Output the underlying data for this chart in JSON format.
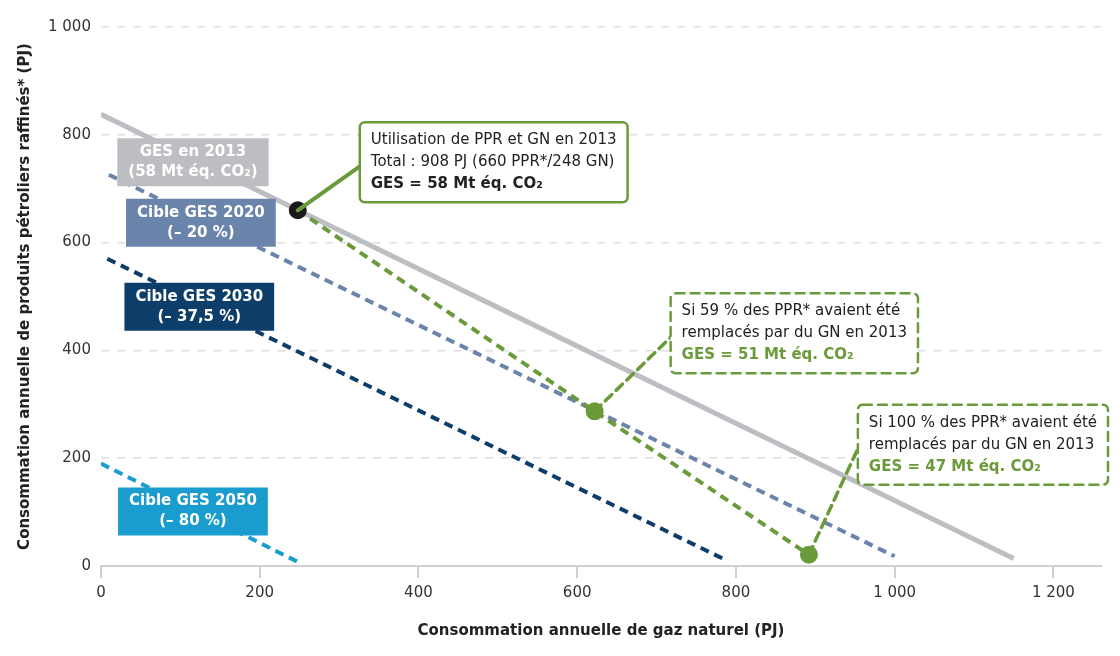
{
  "chart_data": {
    "type": "line",
    "xlabel": "Consommation annuelle de gaz naturel (PJ)",
    "ylabel": "Consommation annuelle de produits pétroliers raffinés* (PJ)",
    "xlim": [
      0,
      1260
    ],
    "ylim": [
      0,
      1000
    ],
    "xticks": [
      0,
      200,
      400,
      600,
      800,
      {
        "value": 1000,
        "label": "1 000"
      },
      {
        "value": 1200,
        "label": "1 200"
      }
    ],
    "yticks": [
      0,
      200,
      400,
      600,
      800,
      {
        "value": 1000,
        "label": "1 000"
      }
    ],
    "grid": "y",
    "legend": false,
    "series": [
      {
        "name": "GES en 2013\n(58 Mt éq. CO₂)",
        "color": "#bdbec2",
        "x": [
          0,
          1150
        ],
        "values": [
          838,
          14
        ],
        "line_style": "solid",
        "marker": "none"
      },
      {
        "name": "Cible GES 2020\n(– 20 %)",
        "color": "#6a84ab",
        "x": [
          10,
          1000
        ],
        "values": [
          726,
          18
        ],
        "line_style": "dashed",
        "marker": "none"
      },
      {
        "name": "Cible GES 2030\n(– 37,5 %)",
        "color": "#0d3d69",
        "x": [
          8,
          786
        ],
        "values": [
          570,
          12
        ],
        "line_style": "dashed",
        "marker": "none"
      },
      {
        "name": "Cible GES 2050\n(– 80 %)",
        "color": "#1a9ccf",
        "x": [
          0,
          249
        ],
        "values": [
          190,
          7
        ],
        "line_style": "dashed",
        "marker": "none"
      },
      {
        "color": "#6a9a3a",
        "colors": [
          "#1a1a1a",
          "#6a9a3a",
          "#6a9a3a"
        ],
        "x": [
          248,
          622,
          892
        ],
        "values": [
          660,
          287,
          21
        ],
        "line_style": "dashed",
        "marker": "circle"
      }
    ],
    "annotations": [
      {
        "text": "Utilisation de PPR et GN en 2013\nTotal : 908 PJ (660 PPR*/248 GN)\nGES = 58 Mt éq. CO₂",
        "x": 248,
        "y": 660
      },
      {
        "text": "Si 59 % des PPR* avaient été\nremplacés par du GN en 2013\nGES = 51 Mt éq. CO₂",
        "x": 622,
        "y": 287
      },
      {
        "text": "Si 100 % des PPR* avaient été\nremplacés par du GN en 2013\nGES = 47 Mt éq. CO₂",
        "x": 892,
        "y": 21
      }
    ]
  }
}
